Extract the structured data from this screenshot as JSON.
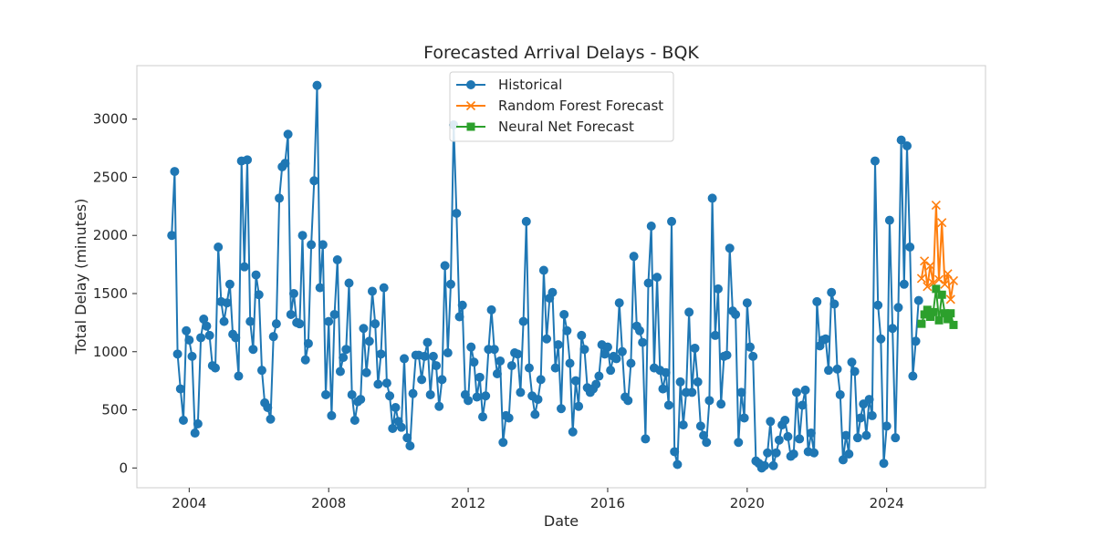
{
  "chart_data": {
    "type": "line",
    "title": "Forecasted Arrival Delays - BQK",
    "xlabel": "Date",
    "ylabel": "Total Delay (minutes)",
    "xlim": [
      "2002-07-01",
      "2026-11-01"
    ],
    "ylim": [
      -170,
      3460
    ],
    "x_ticks": [
      "2004",
      "2008",
      "2012",
      "2016",
      "2020",
      "2024"
    ],
    "y_ticks": [
      0,
      500,
      1000,
      1500,
      2000,
      2500,
      3000
    ],
    "grid": false,
    "legend_position": "top-center",
    "series": [
      {
        "name": "Historical",
        "color": "#1f77b4",
        "marker": "circle",
        "x": [
          "2003-07",
          "2003-08",
          "2003-09",
          "2003-10",
          "2003-11",
          "2003-12",
          "2004-01",
          "2004-02",
          "2004-03",
          "2004-04",
          "2004-05",
          "2004-06",
          "2004-07",
          "2004-08",
          "2004-09",
          "2004-10",
          "2004-11",
          "2004-12",
          "2005-01",
          "2005-02",
          "2005-03",
          "2005-04",
          "2005-05",
          "2005-06",
          "2005-07",
          "2005-08",
          "2005-09",
          "2005-10",
          "2005-11",
          "2005-12",
          "2006-01",
          "2006-02",
          "2006-03",
          "2006-04",
          "2006-05",
          "2006-06",
          "2006-07",
          "2006-08",
          "2006-09",
          "2006-10",
          "2006-11",
          "2006-12",
          "2007-01",
          "2007-02",
          "2007-03",
          "2007-04",
          "2007-05",
          "2007-06",
          "2007-07",
          "2007-08",
          "2007-09",
          "2007-10",
          "2007-11",
          "2007-12",
          "2008-01",
          "2008-02",
          "2008-03",
          "2008-04",
          "2008-05",
          "2008-06",
          "2008-07",
          "2008-08",
          "2008-09",
          "2008-10",
          "2008-11",
          "2008-12",
          "2009-01",
          "2009-02",
          "2009-03",
          "2009-04",
          "2009-05",
          "2009-06",
          "2009-07",
          "2009-08",
          "2009-09",
          "2009-10",
          "2009-11",
          "2009-12",
          "2010-01",
          "2010-02",
          "2010-03",
          "2010-04",
          "2010-05",
          "2010-06",
          "2010-07",
          "2010-08",
          "2010-09",
          "2010-10",
          "2010-11",
          "2010-12",
          "2011-01",
          "2011-02",
          "2011-03",
          "2011-04",
          "2011-05",
          "2011-06",
          "2011-07",
          "2011-08",
          "2011-09",
          "2011-10",
          "2011-11",
          "2011-12",
          "2012-01",
          "2012-02",
          "2012-03",
          "2012-04",
          "2012-05",
          "2012-06",
          "2012-07",
          "2012-08",
          "2012-09",
          "2012-10",
          "2012-11",
          "2012-12",
          "2013-01",
          "2013-02",
          "2013-03",
          "2013-04",
          "2013-05",
          "2013-06",
          "2013-07",
          "2013-08",
          "2013-09",
          "2013-10",
          "2013-11",
          "2013-12",
          "2014-01",
          "2014-02",
          "2014-03",
          "2014-04",
          "2014-05",
          "2014-06",
          "2014-07",
          "2014-08",
          "2014-09",
          "2014-10",
          "2014-11",
          "2014-12",
          "2015-01",
          "2015-02",
          "2015-03",
          "2015-04",
          "2015-05",
          "2015-06",
          "2015-07",
          "2015-08",
          "2015-09",
          "2015-10",
          "2015-11",
          "2015-12",
          "2016-01",
          "2016-02",
          "2016-03",
          "2016-04",
          "2016-05",
          "2016-06",
          "2016-07",
          "2016-08",
          "2016-09",
          "2016-10",
          "2016-11",
          "2016-12",
          "2017-01",
          "2017-02",
          "2017-03",
          "2017-04",
          "2017-05",
          "2017-06",
          "2017-07",
          "2017-08",
          "2017-09",
          "2017-10",
          "2017-11",
          "2017-12",
          "2018-01",
          "2018-02",
          "2018-03",
          "2018-04",
          "2018-05",
          "2018-06",
          "2018-07",
          "2018-08",
          "2018-09",
          "2018-10",
          "2018-11",
          "2018-12",
          "2019-01",
          "2019-02",
          "2019-03",
          "2019-04",
          "2019-05",
          "2019-06",
          "2019-07",
          "2019-08",
          "2019-09",
          "2019-10",
          "2019-11",
          "2019-12",
          "2020-01",
          "2020-02",
          "2020-03",
          "2020-04",
          "2020-05",
          "2020-06",
          "2020-07",
          "2020-08",
          "2020-09",
          "2020-10",
          "2020-11",
          "2020-12",
          "2021-01",
          "2021-02",
          "2021-03",
          "2021-04",
          "2021-05",
          "2021-06",
          "2021-07",
          "2021-08",
          "2021-09",
          "2021-10",
          "2021-11",
          "2021-12",
          "2022-01",
          "2022-02",
          "2022-03",
          "2022-04",
          "2022-05",
          "2022-06",
          "2022-07",
          "2022-08",
          "2022-09",
          "2022-10",
          "2022-11",
          "2022-12",
          "2023-01",
          "2023-02",
          "2023-03",
          "2023-04",
          "2023-05",
          "2023-06",
          "2023-07",
          "2023-08",
          "2023-09",
          "2023-10",
          "2023-11",
          "2023-12",
          "2024-01",
          "2024-02",
          "2024-03",
          "2024-04",
          "2024-05",
          "2024-06",
          "2024-07",
          "2024-08",
          "2024-09",
          "2024-10",
          "2024-11",
          "2024-12"
        ],
        "values": [
          2000,
          2550,
          980,
          680,
          410,
          1180,
          1100,
          960,
          300,
          380,
          1120,
          1280,
          1220,
          1140,
          880,
          860,
          1900,
          1430,
          1260,
          1420,
          1580,
          1150,
          1120,
          790,
          2640,
          1730,
          2650,
          1260,
          1020,
          1660,
          1490,
          840,
          560,
          520,
          420,
          1130,
          1240,
          2320,
          2590,
          2620,
          2870,
          1320,
          1500,
          1250,
          1240,
          2000,
          930,
          1070,
          1920,
          2470,
          3290,
          1550,
          1920,
          630,
          1260,
          450,
          1320,
          1790,
          830,
          950,
          1020,
          1590,
          630,
          410,
          570,
          590,
          1200,
          820,
          1090,
          1520,
          1240,
          720,
          980,
          1550,
          730,
          620,
          340,
          520,
          400,
          350,
          940,
          260,
          190,
          640,
          970,
          970,
          760,
          960,
          1080,
          630,
          960,
          880,
          530,
          760,
          1740,
          990,
          1580,
          2950,
          2190,
          1300,
          1400,
          630,
          580,
          1040,
          910,
          610,
          780,
          440,
          620,
          1020,
          1360,
          1020,
          810,
          920,
          220,
          450,
          430,
          880,
          990,
          980,
          650,
          1260,
          2120,
          860,
          620,
          460,
          590,
          760,
          1700,
          1110,
          1460,
          1510,
          860,
          1060,
          510,
          1320,
          1180,
          900,
          310,
          750,
          530,
          1140,
          1020,
          690,
          650,
          680,
          720,
          790,
          1060,
          980,
          1040,
          840,
          960,
          940,
          1420,
          1000,
          610,
          580,
          900,
          1820,
          1220,
          1180,
          1080,
          250,
          1590,
          2080,
          860,
          1640,
          840,
          680,
          820,
          540,
          2120,
          140,
          30,
          740,
          370,
          650,
          1340,
          650,
          1030,
          740,
          360,
          280,
          220,
          580,
          2320,
          1140,
          1540,
          550,
          960,
          970,
          1890,
          1350,
          1320,
          220,
          650,
          430,
          1420,
          1040,
          960,
          60,
          40,
          0,
          20,
          130,
          400,
          20,
          130,
          240,
          370,
          410,
          270,
          100,
          120,
          650,
          250,
          540,
          670,
          140,
          300,
          130,
          1430,
          1050,
          1100,
          1110,
          840,
          1510,
          1410,
          850,
          630,
          70,
          280,
          120,
          910,
          830,
          260,
          430,
          550,
          280,
          590,
          450,
          2640,
          1400,
          1110,
          40,
          360,
          2130,
          1200,
          260,
          1380,
          2820,
          1580,
          2770,
          1900,
          790,
          1090,
          1440
        ]
      },
      {
        "name": "Random Forest Forecast",
        "color": "#ff7f0e",
        "marker": "x",
        "x": [
          "2025-01",
          "2025-02",
          "2025-03",
          "2025-04",
          "2025-05",
          "2025-06",
          "2025-07",
          "2025-08",
          "2025-09",
          "2025-10",
          "2025-11",
          "2025-12"
        ],
        "values": [
          1630,
          1780,
          1560,
          1740,
          1590,
          2260,
          1620,
          2110,
          1580,
          1670,
          1450,
          1610
        ]
      },
      {
        "name": "Neural Net Forecast",
        "color": "#2ca02c",
        "marker": "square",
        "x": [
          "2025-01",
          "2025-02",
          "2025-03",
          "2025-04",
          "2025-05",
          "2025-06",
          "2025-07",
          "2025-08",
          "2025-09",
          "2025-10",
          "2025-11",
          "2025-12"
        ],
        "values": [
          1240,
          1320,
          1360,
          1300,
          1340,
          1540,
          1270,
          1490,
          1330,
          1280,
          1330,
          1230
        ]
      }
    ]
  }
}
